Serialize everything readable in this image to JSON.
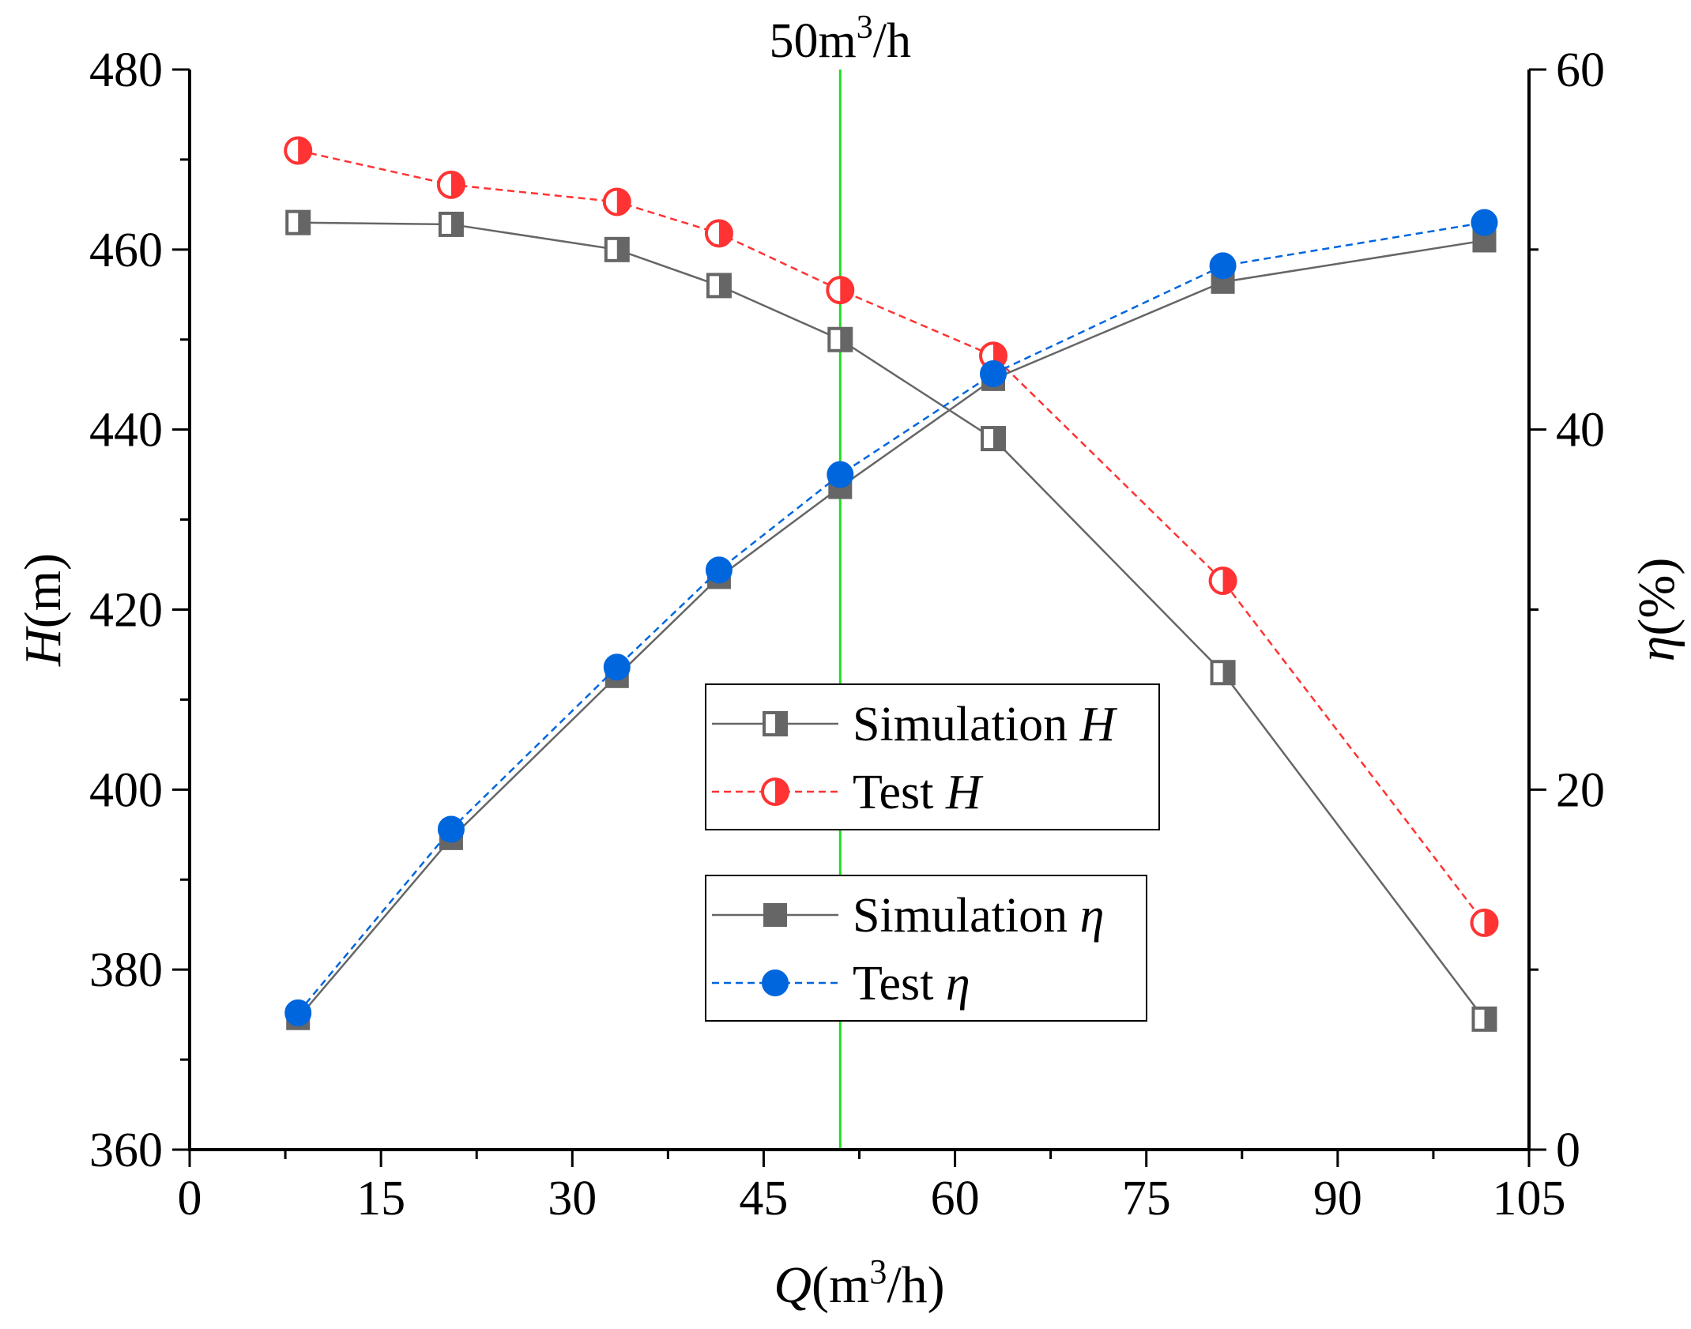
{
  "chart_data": {
    "type": "line",
    "x_axis": {
      "title_var": "Q",
      "title_unit_open": "(m",
      "title_sup": "3",
      "title_unit_close": "/h)",
      "range": [
        0,
        105
      ],
      "ticks": [
        0,
        15,
        30,
        45,
        60,
        75,
        90,
        105
      ],
      "tick_labels": [
        "0",
        "15",
        "30",
        "45",
        "60",
        "75",
        "90",
        "105"
      ]
    },
    "y_left": {
      "title_var": "H",
      "title_unit": "(m)",
      "range": [
        360,
        480
      ],
      "ticks": [
        360,
        380,
        400,
        420,
        440,
        460,
        480
      ],
      "tick_labels": [
        "360",
        "380",
        "400",
        "420",
        "440",
        "460",
        "480"
      ]
    },
    "y_right": {
      "title_var": "η",
      "title_unit": "(%)",
      "range": [
        0,
        60
      ],
      "ticks": [
        0,
        20,
        40,
        60
      ],
      "tick_labels": [
        "0",
        "20",
        "40",
        "60"
      ]
    },
    "reference_line": {
      "x": 51,
      "label_main": "50m",
      "label_sup": "3",
      "label_tail": "/h",
      "color": "#22dd22"
    },
    "x": [
      8.5,
      20.5,
      33.5,
      41.5,
      51,
      63,
      81,
      101.5
    ],
    "series": [
      {
        "name": "Simulation H",
        "axis": "left",
        "color": "#666666",
        "dash": "solid",
        "marker": "half-square",
        "values": [
          463,
          462.8,
          460,
          456,
          450,
          439,
          413,
          374.5
        ]
      },
      {
        "name": "Test H",
        "axis": "left",
        "color": "#ff3333",
        "dash": "dashed",
        "marker": "half-circle",
        "values": [
          471,
          467.2,
          465.3,
          461.8,
          455.5,
          448.2,
          423.2,
          385.2
        ]
      },
      {
        "name": "Simulation η",
        "axis": "right",
        "color": "#666666",
        "dash": "solid",
        "marker": "square",
        "values": [
          7.3,
          17.3,
          26.3,
          31.8,
          36.8,
          42.8,
          48.2,
          50.5
        ]
      },
      {
        "name": "Test η",
        "axis": "right",
        "color": "#0066dd",
        "dash": "dashed",
        "marker": "circle",
        "values": [
          7.6,
          17.8,
          26.8,
          32.2,
          37.5,
          43.1,
          49.1,
          51.5
        ]
      }
    ],
    "legend": {
      "boxes": [
        {
          "entries": [
            {
              "series": 0,
              "label": "Simulation ",
              "var": "H"
            },
            {
              "series": 1,
              "label": "Test ",
              "var": "H"
            }
          ]
        },
        {
          "entries": [
            {
              "series": 2,
              "label": "Simulation ",
              "var": "η"
            },
            {
              "series": 3,
              "label": "Test ",
              "var": "η"
            }
          ]
        }
      ]
    },
    "grid": false
  }
}
